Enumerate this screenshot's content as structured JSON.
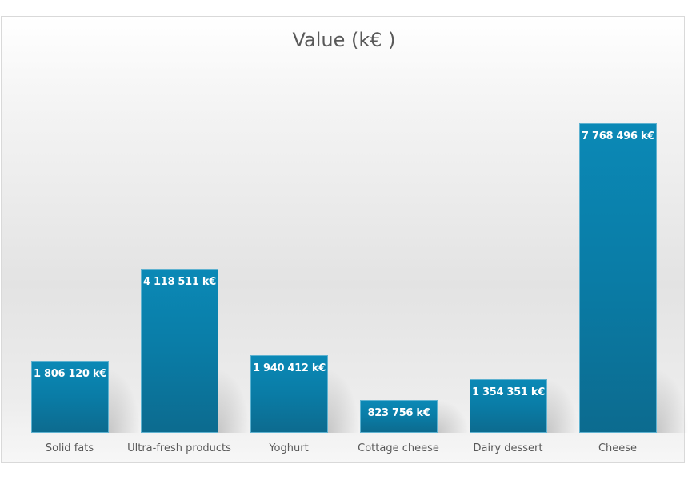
{
  "chart_data": {
    "type": "bar",
    "title": "Value (k€ )",
    "categories": [
      "Solid fats",
      "Ultra-fresh products",
      "Yoghurt",
      "Cottage cheese",
      "Dairy dessert",
      "Cheese"
    ],
    "values": [
      1806120,
      4118511,
      1940412,
      823756,
      1354351,
      7768496
    ],
    "data_labels": [
      "1 806 120 k€",
      "4 118 511 k€",
      "1 940 412 k€",
      "823 756 k€",
      "1 354 351 k€",
      "7 768 496 k€"
    ],
    "unit": "k€",
    "xlabel": "",
    "ylabel": "",
    "ylim": [
      0,
      7768496
    ],
    "grid": false,
    "legend": "none",
    "bar_color": "#0b7ea8"
  },
  "chart": {
    "title": "Value (k€ )"
  }
}
